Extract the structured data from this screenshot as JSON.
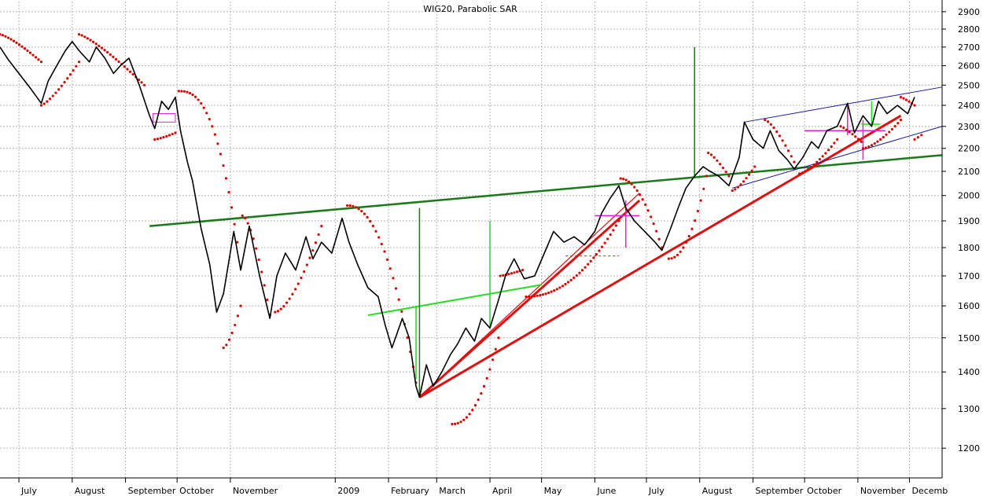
{
  "chart_data": {
    "type": "line",
    "title": "WIG20, Parabolic SAR",
    "y_scale": "log",
    "ylim": [
      1130,
      2960
    ],
    "y_ticks": [
      1200,
      1300,
      1400,
      1500,
      1600,
      1700,
      1800,
      1900,
      2000,
      2100,
      2200,
      2300,
      2400,
      2500,
      2600,
      2700,
      2800,
      2900
    ],
    "x_range": [
      "2008-06-20",
      "2009-12-20"
    ],
    "month_labels": [
      {
        "label": "July",
        "date": "2008-07-01"
      },
      {
        "label": "August",
        "date": "2008-08-01"
      },
      {
        "label": "September",
        "date": "2008-09-01"
      },
      {
        "label": "October",
        "date": "2008-10-01"
      },
      {
        "label": "November",
        "date": "2008-11-01"
      },
      {
        "label": "2009",
        "date": "2009-01-01"
      },
      {
        "label": "February",
        "date": "2009-02-01"
      },
      {
        "label": "March",
        "date": "2009-03-01"
      },
      {
        "label": "April",
        "date": "2009-04-01"
      },
      {
        "label": "May",
        "date": "2009-05-01"
      },
      {
        "label": "June",
        "date": "2009-06-01"
      },
      {
        "label": "July",
        "date": "2009-07-01"
      },
      {
        "label": "August",
        "date": "2009-08-01"
      },
      {
        "label": "September",
        "date": "2009-09-01"
      },
      {
        "label": "October",
        "date": "2009-10-01"
      },
      {
        "label": "November",
        "date": "2009-11-01"
      },
      {
        "label": "Decemb",
        "date": "2009-12-01"
      }
    ],
    "grid": true,
    "series": [
      {
        "kind": "price",
        "color": "#000000",
        "points": [
          [
            "2008-06-20",
            2700
          ],
          [
            "2008-06-25",
            2630
          ],
          [
            "2008-07-01",
            2560
          ],
          [
            "2008-07-08",
            2480
          ],
          [
            "2008-07-14",
            2410
          ],
          [
            "2008-07-18",
            2520
          ],
          [
            "2008-07-23",
            2600
          ],
          [
            "2008-07-28",
            2680
          ],
          [
            "2008-08-01",
            2730
          ],
          [
            "2008-08-05",
            2680
          ],
          [
            "2008-08-11",
            2620
          ],
          [
            "2008-08-15",
            2700
          ],
          [
            "2008-08-20",
            2640
          ],
          [
            "2008-08-25",
            2560
          ],
          [
            "2008-08-29",
            2600
          ],
          [
            "2008-09-03",
            2640
          ],
          [
            "2008-09-09",
            2500
          ],
          [
            "2008-09-15",
            2350
          ],
          [
            "2008-09-18",
            2290
          ],
          [
            "2008-09-22",
            2420
          ],
          [
            "2008-09-26",
            2380
          ],
          [
            "2008-09-30",
            2440
          ],
          [
            "2008-10-03",
            2280
          ],
          [
            "2008-10-07",
            2140
          ],
          [
            "2008-10-10",
            2060
          ],
          [
            "2008-10-15",
            1870
          ],
          [
            "2008-10-20",
            1740
          ],
          [
            "2008-10-24",
            1580
          ],
          [
            "2008-10-28",
            1640
          ],
          [
            "2008-11-03",
            1860
          ],
          [
            "2008-11-07",
            1720
          ],
          [
            "2008-11-12",
            1880
          ],
          [
            "2008-11-18",
            1700
          ],
          [
            "2008-11-24",
            1560
          ],
          [
            "2008-11-28",
            1700
          ],
          [
            "2008-12-03",
            1780
          ],
          [
            "2008-12-09",
            1720
          ],
          [
            "2008-12-15",
            1840
          ],
          [
            "2008-12-19",
            1760
          ],
          [
            "2008-12-24",
            1820
          ],
          [
            "2008-12-30",
            1780
          ],
          [
            "2009-01-05",
            1910
          ],
          [
            "2009-01-09",
            1820
          ],
          [
            "2009-01-14",
            1740
          ],
          [
            "2009-01-20",
            1660
          ],
          [
            "2009-01-26",
            1630
          ],
          [
            "2009-01-30",
            1540
          ],
          [
            "2009-02-03",
            1470
          ],
          [
            "2009-02-09",
            1560
          ],
          [
            "2009-02-13",
            1500
          ],
          [
            "2009-02-17",
            1360
          ],
          [
            "2009-02-19",
            1330
          ],
          [
            "2009-02-23",
            1420
          ],
          [
            "2009-02-27",
            1360
          ],
          [
            "2009-03-04",
            1400
          ],
          [
            "2009-03-09",
            1450
          ],
          [
            "2009-03-13",
            1480
          ],
          [
            "2009-03-18",
            1530
          ],
          [
            "2009-03-23",
            1490
          ],
          [
            "2009-03-27",
            1560
          ],
          [
            "2009-04-01",
            1530
          ],
          [
            "2009-04-06",
            1620
          ],
          [
            "2009-04-10",
            1700
          ],
          [
            "2009-04-15",
            1760
          ],
          [
            "2009-04-21",
            1690
          ],
          [
            "2009-04-27",
            1700
          ],
          [
            "2009-05-04",
            1800
          ],
          [
            "2009-05-08",
            1860
          ],
          [
            "2009-05-14",
            1820
          ],
          [
            "2009-05-20",
            1840
          ],
          [
            "2009-05-26",
            1810
          ],
          [
            "2009-06-01",
            1860
          ],
          [
            "2009-06-05",
            1930
          ],
          [
            "2009-06-10",
            1990
          ],
          [
            "2009-06-15",
            2040
          ],
          [
            "2009-06-19",
            1950
          ],
          [
            "2009-06-24",
            1900
          ],
          [
            "2009-06-30",
            1860
          ],
          [
            "2009-07-06",
            1820
          ],
          [
            "2009-07-10",
            1790
          ],
          [
            "2009-07-15",
            1870
          ],
          [
            "2009-07-20",
            1960
          ],
          [
            "2009-07-24",
            2030
          ],
          [
            "2009-07-29",
            2080
          ],
          [
            "2009-08-03",
            2120
          ],
          [
            "2009-08-07",
            2100
          ],
          [
            "2009-08-12",
            2080
          ],
          [
            "2009-08-18",
            2040
          ],
          [
            "2009-08-24",
            2160
          ],
          [
            "2009-08-27",
            2320
          ],
          [
            "2009-09-01",
            2240
          ],
          [
            "2009-09-07",
            2200
          ],
          [
            "2009-09-11",
            2280
          ],
          [
            "2009-09-16",
            2190
          ],
          [
            "2009-09-21",
            2150
          ],
          [
            "2009-09-25",
            2110
          ],
          [
            "2009-09-30",
            2160
          ],
          [
            "2009-10-05",
            2230
          ],
          [
            "2009-10-09",
            2200
          ],
          [
            "2009-10-14",
            2280
          ],
          [
            "2009-10-20",
            2300
          ],
          [
            "2009-10-26",
            2410
          ],
          [
            "2009-10-30",
            2270
          ],
          [
            "2009-11-04",
            2350
          ],
          [
            "2009-11-09",
            2300
          ],
          [
            "2009-11-13",
            2420
          ],
          [
            "2009-11-18",
            2360
          ],
          [
            "2009-11-24",
            2400
          ],
          [
            "2009-11-30",
            2360
          ],
          [
            "2009-12-04",
            2440
          ]
        ]
      },
      {
        "kind": "parabolic_sar",
        "color": "#dd0000",
        "segments": [
          {
            "side": "above",
            "from": [
              "2008-06-20",
              2770
            ],
            "to": [
              "2008-07-14",
              2620
            ],
            "acc": 0.3
          },
          {
            "side": "below",
            "from": [
              "2008-07-14",
              2400
            ],
            "to": [
              "2008-08-05",
              2620
            ],
            "acc": 0.3
          },
          {
            "side": "above",
            "from": [
              "2008-08-05",
              2770
            ],
            "to": [
              "2008-09-12",
              2500
            ],
            "acc": 0.25
          },
          {
            "side": "below",
            "from": [
              "2008-09-18",
              2240
            ],
            "to": [
              "2008-09-30",
              2270
            ],
            "acc": 0.3
          },
          {
            "side": "above",
            "from": [
              "2008-10-02",
              2470
            ],
            "to": [
              "2008-11-05",
              1820
            ],
            "acc": 1.6
          },
          {
            "side": "below",
            "from": [
              "2008-10-28",
              1470
            ],
            "to": [
              "2008-11-07",
              1600
            ],
            "acc": 0.5
          },
          {
            "side": "above",
            "from": [
              "2008-11-08",
              1920
            ],
            "to": [
              "2008-11-24",
              1570
            ],
            "acc": 0.6
          },
          {
            "side": "below",
            "from": [
              "2008-11-27",
              1580
            ],
            "to": [
              "2008-12-24",
              1880
            ],
            "acc": 0.6
          },
          {
            "side": "above",
            "from": [
              "2009-01-08",
              1960
            ],
            "to": [
              "2009-02-17",
              1370
            ],
            "acc": 1.2
          },
          {
            "side": "below",
            "from": [
              "2009-03-10",
              1260
            ],
            "to": [
              "2009-04-06",
              1500
            ],
            "acc": 1.2
          },
          {
            "side": "above",
            "from": [
              "2009-04-07",
              1700
            ],
            "to": [
              "2009-04-20",
              1720
            ],
            "acc": 0.2
          },
          {
            "side": "below",
            "from": [
              "2009-04-22",
              1630
            ],
            "to": [
              "2009-06-15",
              1900
            ],
            "acc": 1.1
          },
          {
            "side": "above",
            "from": [
              "2009-06-16",
              2070
            ],
            "to": [
              "2009-07-10",
              1800
            ],
            "acc": 0.9
          },
          {
            "side": "below",
            "from": [
              "2009-07-14",
              1760
            ],
            "to": [
              "2009-08-05",
              2080
            ],
            "acc": 1.1
          },
          {
            "side": "above",
            "from": [
              "2009-08-06",
              2180
            ],
            "to": [
              "2009-08-18",
              2080
            ],
            "acc": 0.3
          },
          {
            "side": "below",
            "from": [
              "2009-08-20",
              2020
            ],
            "to": [
              "2009-09-02",
              2120
            ],
            "acc": 0.4
          },
          {
            "side": "above",
            "from": [
              "2009-09-08",
              2330
            ],
            "to": [
              "2009-09-25",
              2140
            ],
            "acc": 0.4
          },
          {
            "side": "below",
            "from": [
              "2009-09-28",
              2090
            ],
            "to": [
              "2009-10-20",
              2240
            ],
            "acc": 0.4
          },
          {
            "side": "above",
            "from": [
              "2009-10-22",
              2300
            ],
            "to": [
              "2009-11-03",
              2230
            ],
            "acc": 0.2
          },
          {
            "side": "below",
            "from": [
              "2009-11-04",
              2200
            ],
            "to": [
              "2009-11-26",
              2330
            ],
            "acc": 0.5
          },
          {
            "side": "above",
            "from": [
              "2009-11-26",
              2440
            ],
            "to": [
              "2009-12-04",
              2400
            ],
            "acc": 0.2
          },
          {
            "side": "below",
            "from": [
              "2009-12-04",
              2240
            ],
            "to": [
              "2009-12-08",
              2260
            ],
            "acc": 0.1
          }
        ]
      }
    ],
    "annotations": [
      {
        "kind": "trendline",
        "color": "#1a7a1a",
        "width": 2.5,
        "from": [
          "2008-09-15",
          1880
        ],
        "to": [
          "2009-12-20",
          2170
        ]
      },
      {
        "kind": "trendline",
        "color": "#dd1111",
        "width": 3,
        "from": [
          "2009-02-19",
          1330
        ],
        "to": [
          "2009-06-27",
          1980
        ]
      },
      {
        "kind": "trendline",
        "color": "#dd1111",
        "width": 1.2,
        "from": [
          "2009-02-19",
          1330
        ],
        "to": [
          "2009-06-27",
          2010
        ]
      },
      {
        "kind": "trendline",
        "color": "#dd1111",
        "width": 3,
        "from": [
          "2009-02-19",
          1330
        ],
        "to": [
          "2009-11-26",
          2350
        ]
      },
      {
        "kind": "trendline",
        "color": "#22dd22",
        "width": 2,
        "from": [
          "2009-01-20",
          1570
        ],
        "to": [
          "2009-05-01",
          1670
        ]
      },
      {
        "kind": "trendline",
        "color": "#1a1a99",
        "width": 1,
        "from": [
          "2009-08-27",
          2320
        ],
        "to": [
          "2009-12-20",
          2490
        ]
      },
      {
        "kind": "trendline",
        "color": "#1a1a99",
        "width": 1,
        "from": [
          "2009-08-20",
          2030
        ],
        "to": [
          "2009-12-20",
          2300
        ]
      },
      {
        "kind": "vline",
        "color": "#1a7a1a",
        "width": 1.5,
        "date": "2009-02-19",
        "from": 1330,
        "to": 1950
      },
      {
        "kind": "vline",
        "color": "#22dd22",
        "width": 1.5,
        "date": "2009-02-17",
        "from": 1380,
        "to": 1600
      },
      {
        "kind": "vline",
        "color": "#22dd22",
        "width": 1.5,
        "date": "2009-04-01",
        "from": 1530,
        "to": 1900
      },
      {
        "kind": "vline",
        "color": "#1a7a1a",
        "width": 1.5,
        "date": "2009-07-29",
        "from": 2080,
        "to": 2700
      },
      {
        "kind": "vline",
        "color": "#22dd22",
        "width": 1.5,
        "date": "2009-11-09",
        "from": 2300,
        "to": 2420
      },
      {
        "kind": "vline",
        "color": "#dd22dd",
        "width": 1.5,
        "date": "2009-06-19",
        "from": 1800,
        "to": 1980
      },
      {
        "kind": "vline",
        "color": "#dd22dd",
        "width": 1.5,
        "date": "2009-10-26",
        "from": 2260,
        "to": 2410
      },
      {
        "kind": "vline",
        "color": "#dd22dd",
        "width": 1.5,
        "date": "2009-11-04",
        "from": 2150,
        "to": 2330
      },
      {
        "kind": "hline",
        "color": "#dd22dd",
        "width": 1.5,
        "value": 1920,
        "from": "2009-06-01",
        "to": "2009-06-27"
      },
      {
        "kind": "hline",
        "color": "#dd22dd",
        "width": 1.5,
        "value": 2280,
        "from": "2009-10-01",
        "to": "2009-11-17"
      },
      {
        "kind": "hline",
        "color": "#22dd22",
        "width": 1.5,
        "value": 2310,
        "from": "2009-11-03",
        "to": "2009-11-14"
      },
      {
        "kind": "rect",
        "color": "#dd22dd",
        "width": 1,
        "from": [
          "2008-09-17",
          2320
        ],
        "to": [
          "2008-09-30",
          2360
        ]
      },
      {
        "kind": "hline",
        "color": "#dd1111",
        "width": 1,
        "dash": true,
        "value": 1770,
        "from": "2009-05-15",
        "to": "2009-06-15"
      }
    ]
  }
}
